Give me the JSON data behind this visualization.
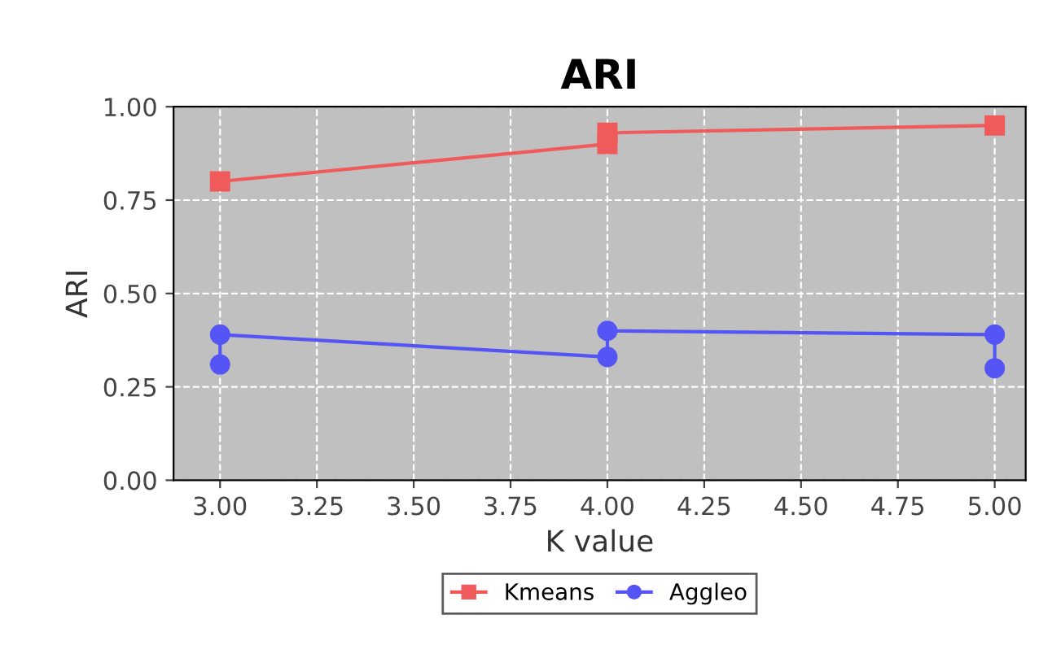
{
  "chart_data": {
    "type": "line",
    "title": "ARI",
    "xlabel": "K value",
    "ylabel": "ARI",
    "xlim": [
      2.88,
      5.08
    ],
    "xticks": [
      {
        "value": 3,
        "label": "3.00"
      },
      {
        "value": 3.25,
        "label": "3.25"
      },
      {
        "value": 3.5,
        "label": "3.50"
      },
      {
        "value": 3.75,
        "label": "3.75"
      },
      {
        "value": 4,
        "label": "4.00"
      },
      {
        "value": 4.25,
        "label": "4.25"
      },
      {
        "value": 4.5,
        "label": "4.50"
      },
      {
        "value": 4.75,
        "label": "4.75"
      },
      {
        "value": 5,
        "label": "5.00"
      }
    ],
    "ylim": [
      0,
      1
    ],
    "yticks": [
      {
        "value": 0,
        "label": "0.00"
      },
      {
        "value": 0.25,
        "label": "0.25"
      },
      {
        "value": 0.5,
        "label": "0.50"
      },
      {
        "value": 0.75,
        "label": "0.75"
      },
      {
        "value": 1,
        "label": "1.00"
      }
    ],
    "grid": true,
    "legend": "bottom",
    "series": [
      {
        "name": "Kmeans",
        "color": "#f05a5a",
        "marker": "square",
        "x": [
          3,
          4,
          4,
          5
        ],
        "values": [
          0.8,
          0.9,
          0.93,
          0.95
        ]
      },
      {
        "name": "Aggleo",
        "color": "#5555f5",
        "marker": "circle",
        "x": [
          3,
          3,
          4,
          4,
          5,
          5
        ],
        "values": [
          0.31,
          0.39,
          0.33,
          0.4,
          0.39,
          0.3
        ]
      }
    ]
  }
}
